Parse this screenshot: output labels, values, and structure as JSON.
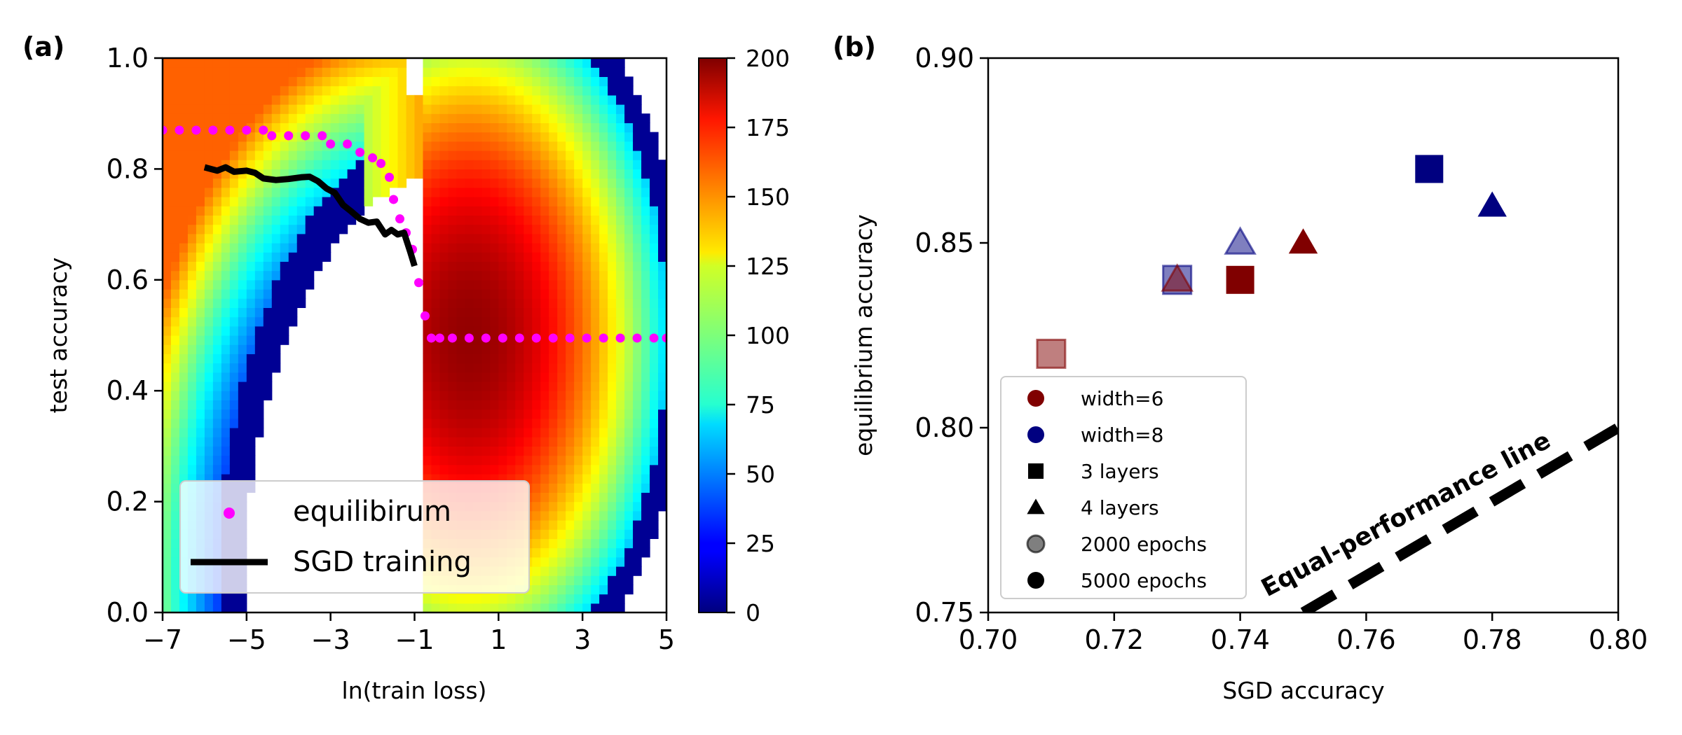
{
  "chart_data": [
    {
      "panel": "(a)",
      "type": "heatmap",
      "xlabel": "ln(train loss)",
      "ylabel": "test accuracy",
      "xlim": [
        -7,
        5
      ],
      "ylim": [
        0,
        1
      ],
      "xticks": [
        -7,
        -5,
        -3,
        -1,
        1,
        3,
        5
      ],
      "xtick_labels": [
        "−7",
        "−5",
        "−3",
        "−1",
        "1",
        "3",
        "5"
      ],
      "yticks": [
        0,
        0.2,
        0.4,
        0.6,
        0.8,
        1.0
      ],
      "ytick_labels": [
        "0.0",
        "0.2",
        "0.4",
        "0.6",
        "0.8",
        "1.0"
      ],
      "colormap": "jet",
      "colorbar": {
        "range": [
          0,
          200
        ],
        "ticks": [
          0,
          25,
          50,
          75,
          100,
          125,
          150,
          175,
          200
        ],
        "tick_labels": [
          "0",
          "25",
          "50",
          "75",
          "100",
          "125",
          "150",
          "175",
          "200"
        ]
      },
      "legend_position": "lower-left",
      "series": [
        {
          "name": "equilibirum",
          "marker": "dot",
          "color": "#ff00ff",
          "x": [
            -7,
            -6.6,
            -6.2,
            -5.8,
            -5.4,
            -5.0,
            -4.6,
            -4.4,
            -4.0,
            -3.6,
            -3.2,
            -3.0,
            -2.6,
            -2.3,
            -2.0,
            -1.8,
            -1.6,
            -1.5,
            -1.35,
            -1.2,
            -1.05,
            -0.9,
            -0.75,
            -0.6,
            -0.4,
            -0.1,
            0.3,
            0.7,
            1.1,
            1.5,
            1.9,
            2.3,
            2.7,
            3.1,
            3.5,
            3.9,
            4.3,
            4.7,
            5.0
          ],
          "y": [
            0.87,
            0.87,
            0.87,
            0.87,
            0.87,
            0.87,
            0.87,
            0.86,
            0.86,
            0.86,
            0.86,
            0.845,
            0.845,
            0.83,
            0.82,
            0.81,
            0.785,
            0.745,
            0.71,
            0.685,
            0.655,
            0.595,
            0.535,
            0.495,
            0.495,
            0.495,
            0.495,
            0.495,
            0.495,
            0.495,
            0.495,
            0.495,
            0.495,
            0.495,
            0.495,
            0.495,
            0.495,
            0.495,
            0.495
          ]
        },
        {
          "name": "SGD training",
          "marker": "line",
          "color": "#000000",
          "x": [
            -6.0,
            -5.7,
            -5.5,
            -5.3,
            -5.0,
            -4.8,
            -4.6,
            -4.3,
            -4.0,
            -3.7,
            -3.5,
            -3.3,
            -3.1,
            -2.9,
            -2.7,
            -2.5,
            -2.3,
            -2.1,
            -1.9,
            -1.7,
            -1.55,
            -1.4,
            -1.25,
            -1.1,
            -1.0
          ],
          "y": [
            0.803,
            0.797,
            0.803,
            0.795,
            0.797,
            0.793,
            0.783,
            0.78,
            0.782,
            0.785,
            0.786,
            0.778,
            0.765,
            0.757,
            0.735,
            0.723,
            0.71,
            0.703,
            0.705,
            0.682,
            0.69,
            0.682,
            0.685,
            0.65,
            0.625
          ]
        }
      ]
    },
    {
      "panel": "(b)",
      "type": "scatter",
      "xlabel": "SGD accuracy",
      "ylabel": "equilibrium accuracy",
      "xlim": [
        0.7,
        0.8
      ],
      "ylim": [
        0.75,
        0.9
      ],
      "xticks": [
        0.7,
        0.72,
        0.74,
        0.76,
        0.78,
        0.8
      ],
      "xtick_labels": [
        "0.70",
        "0.72",
        "0.74",
        "0.76",
        "0.78",
        "0.80"
      ],
      "yticks": [
        0.75,
        0.8,
        0.85,
        0.9
      ],
      "ytick_labels": [
        "0.75",
        "0.80",
        "0.85",
        "0.90"
      ],
      "legend_position": "lower-left",
      "legend": [
        {
          "label": "width=6",
          "shape": "circle",
          "color": "#800000",
          "alpha": 1
        },
        {
          "label": "width=8",
          "shape": "circle",
          "color": "#000080",
          "alpha": 1
        },
        {
          "label": "3 layers",
          "shape": "square",
          "color": "#000000",
          "alpha": 1
        },
        {
          "label": "4 layers",
          "shape": "triangle",
          "color": "#000000",
          "alpha": 1
        },
        {
          "label": "2000 epochs",
          "shape": "circle",
          "color": "#000000",
          "alpha": 0.5
        },
        {
          "label": "5000 epochs",
          "shape": "circle",
          "color": "#000000",
          "alpha": 1
        }
      ],
      "points": [
        {
          "x": 0.71,
          "y": 0.82,
          "width": 6,
          "layers": 3,
          "epochs": 2000
        },
        {
          "x": 0.73,
          "y": 0.84,
          "width": 8,
          "layers": 3,
          "epochs": 2000
        },
        {
          "x": 0.73,
          "y": 0.84,
          "width": 6,
          "layers": 4,
          "epochs": 2000
        },
        {
          "x": 0.74,
          "y": 0.85,
          "width": 8,
          "layers": 4,
          "epochs": 2000
        },
        {
          "x": 0.74,
          "y": 0.84,
          "width": 6,
          "layers": 3,
          "epochs": 5000
        },
        {
          "x": 0.75,
          "y": 0.85,
          "width": 6,
          "layers": 4,
          "epochs": 5000
        },
        {
          "x": 0.77,
          "y": 0.87,
          "width": 8,
          "layers": 3,
          "epochs": 5000
        },
        {
          "x": 0.78,
          "y": 0.86,
          "width": 8,
          "layers": 4,
          "epochs": 5000
        }
      ],
      "reference_line": {
        "label": "Equal-performance line",
        "x": [
          0.75,
          0.8
        ],
        "y": [
          0.75,
          0.8
        ],
        "style": "dashed"
      }
    }
  ]
}
